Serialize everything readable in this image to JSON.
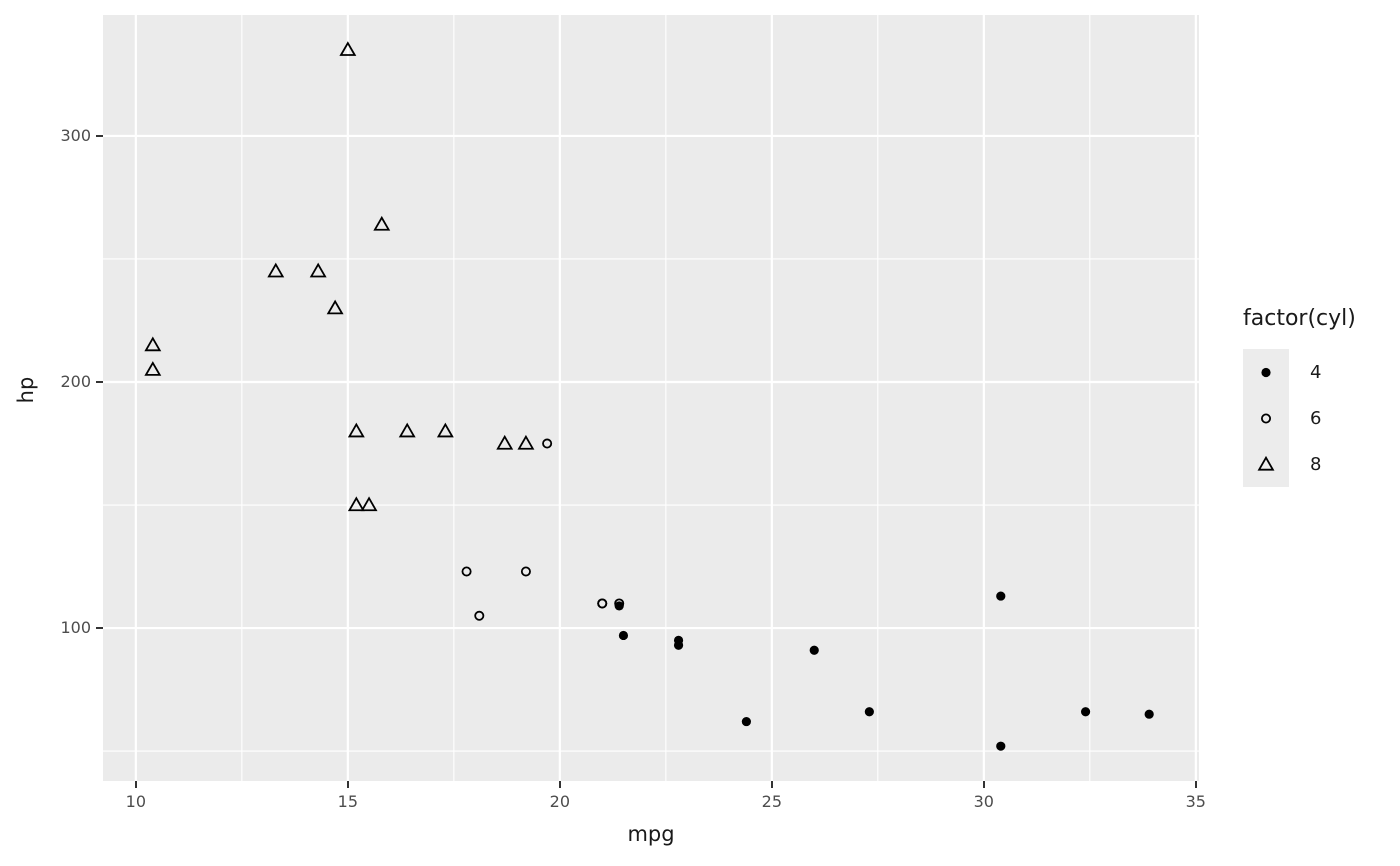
{
  "chart_data": {
    "type": "scatter",
    "title": "",
    "xlabel": "mpg",
    "ylabel": "hp",
    "x_ticks": [
      10,
      15,
      20,
      25,
      30,
      35
    ],
    "y_ticks": [
      100,
      200,
      300
    ],
    "xlim": [
      9.225,
      35.075
    ],
    "ylim": [
      37.85,
      349.15
    ],
    "grid": {
      "major": true,
      "minor": true
    },
    "legend": {
      "title": "factor(cyl)",
      "position": "right",
      "entries": [
        {
          "label": "4",
          "shape": "filled-circle"
        },
        {
          "label": "6",
          "shape": "open-circle"
        },
        {
          "label": "8",
          "shape": "open-triangle"
        }
      ]
    },
    "series": [
      {
        "name": "4",
        "shape": "filled-circle",
        "points": [
          [
            22.8,
            93
          ],
          [
            24.4,
            62
          ],
          [
            22.8,
            95
          ],
          [
            32.4,
            66
          ],
          [
            30.4,
            52
          ],
          [
            33.9,
            65
          ],
          [
            21.5,
            97
          ],
          [
            27.3,
            66
          ],
          [
            26.0,
            91
          ],
          [
            30.4,
            113
          ],
          [
            21.4,
            109
          ]
        ]
      },
      {
        "name": "6",
        "shape": "open-circle",
        "points": [
          [
            21.0,
            110
          ],
          [
            21.0,
            110
          ],
          [
            21.4,
            110
          ],
          [
            18.1,
            105
          ],
          [
            19.2,
            123
          ],
          [
            17.8,
            123
          ],
          [
            19.7,
            175
          ]
        ]
      },
      {
        "name": "8",
        "shape": "open-triangle",
        "points": [
          [
            18.7,
            175
          ],
          [
            14.3,
            245
          ],
          [
            16.4,
            180
          ],
          [
            17.3,
            180
          ],
          [
            15.2,
            180
          ],
          [
            10.4,
            205
          ],
          [
            10.4,
            215
          ],
          [
            14.7,
            230
          ],
          [
            15.5,
            150
          ],
          [
            15.2,
            150
          ],
          [
            13.3,
            245
          ],
          [
            19.2,
            175
          ],
          [
            15.8,
            264
          ],
          [
            15.0,
            335
          ]
        ]
      }
    ]
  },
  "colors": {
    "background": "#FFFFFF",
    "panel_bg": "#EBEBEB",
    "grid_line": "#FFFFFF",
    "point": "#000000",
    "tick_label": "#4D4D4D",
    "tick_mark": "#333333",
    "axis_title": "#1A1A1A",
    "legend_key_bg": "#ECECEC"
  }
}
